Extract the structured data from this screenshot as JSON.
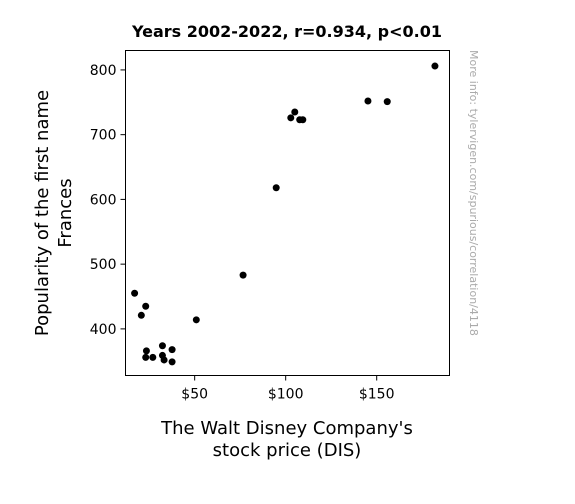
{
  "chart_data": {
    "type": "scatter",
    "title": "Years 2002-2022, r=0.934, p<0.01",
    "xlabel_lines": [
      "The Walt Disney Company's",
      "stock price (DIS)"
    ],
    "ylabel_lines": [
      "Popularity of the first name",
      "Frances"
    ],
    "watermark": "More info: tylervigen.com/spurious/correlation/4118",
    "xlim": [
      12,
      190
    ],
    "ylim": [
      328,
      830
    ],
    "x_ticks": [
      {
        "value": 50,
        "label": "$50"
      },
      {
        "value": 100,
        "label": "$100"
      },
      {
        "value": 150,
        "label": "$150"
      }
    ],
    "y_ticks": [
      {
        "value": 400,
        "label": "400"
      },
      {
        "value": 500,
        "label": "500"
      },
      {
        "value": 600,
        "label": "600"
      },
      {
        "value": 700,
        "label": "700"
      },
      {
        "value": 800,
        "label": "800"
      }
    ],
    "points": [
      {
        "x": 17,
        "y": 455
      },
      {
        "x": 20.7,
        "y": 421
      },
      {
        "x": 23.1,
        "y": 435
      },
      {
        "x": 23.5,
        "y": 366
      },
      {
        "x": 23.1,
        "y": 356
      },
      {
        "x": 27,
        "y": 356
      },
      {
        "x": 32.3,
        "y": 374
      },
      {
        "x": 32.3,
        "y": 359
      },
      {
        "x": 33.2,
        "y": 352
      },
      {
        "x": 37.6,
        "y": 349
      },
      {
        "x": 37.6,
        "y": 368
      },
      {
        "x": 50.9,
        "y": 414
      },
      {
        "x": 76.6,
        "y": 483
      },
      {
        "x": 94.8,
        "y": 618
      },
      {
        "x": 102.8,
        "y": 726
      },
      {
        "x": 105,
        "y": 735
      },
      {
        "x": 107.7,
        "y": 723
      },
      {
        "x": 109.4,
        "y": 723
      },
      {
        "x": 145.2,
        "y": 752
      },
      {
        "x": 155.8,
        "y": 751
      },
      {
        "x": 182,
        "y": 806
      }
    ],
    "marker_color": "#000000",
    "grid": false
  }
}
